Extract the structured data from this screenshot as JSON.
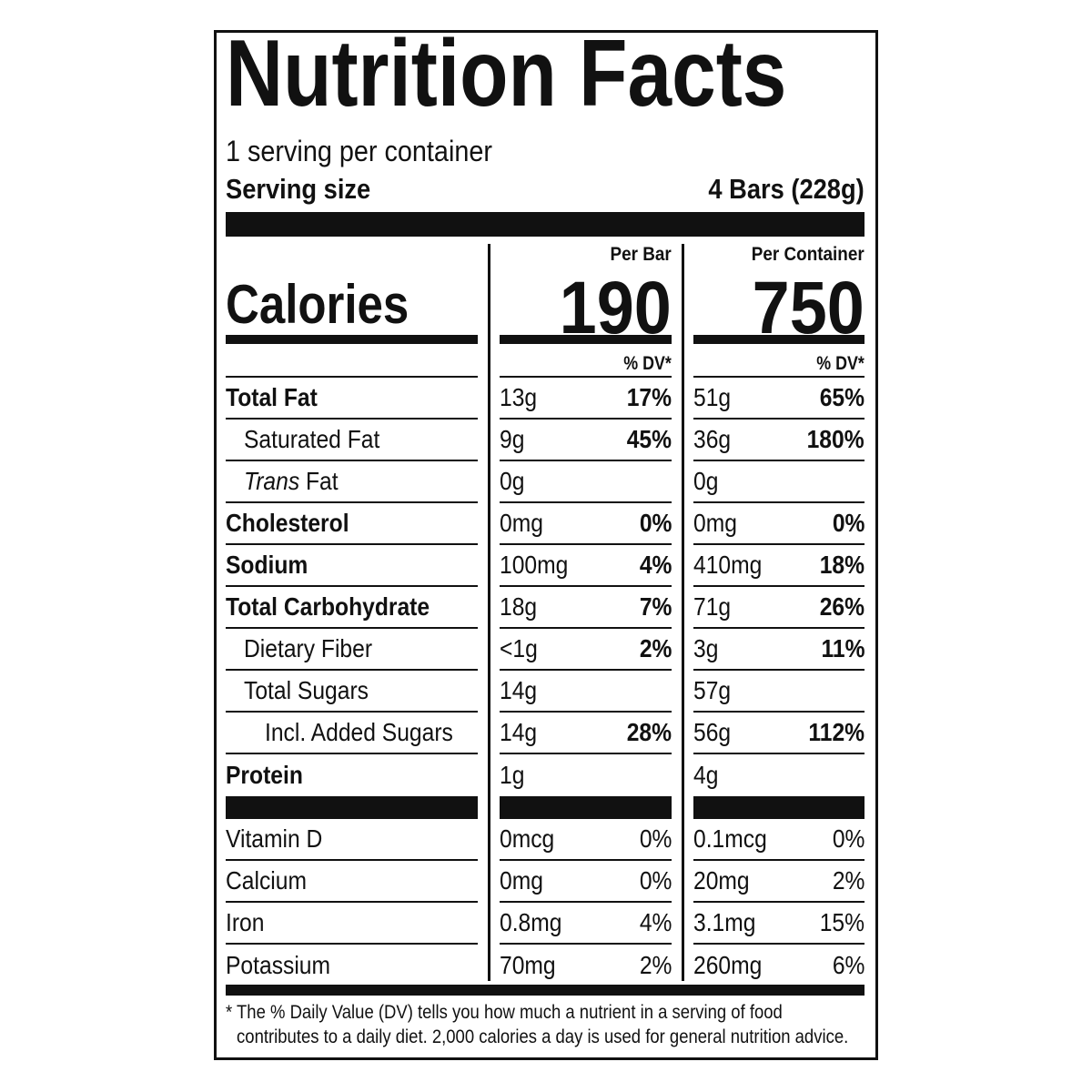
{
  "title": "Nutrition Facts",
  "servings_per_container": "1 serving per container",
  "serving_size": {
    "label": "Serving size",
    "value": "4 Bars (228g)"
  },
  "calories": {
    "label": "Calories",
    "columns": [
      {
        "header": "Per Bar",
        "value": "190"
      },
      {
        "header": "Per Container",
        "value": "750"
      }
    ]
  },
  "dv_header": "% DV*",
  "nutrients": [
    {
      "label": "Total Fat",
      "bold": true,
      "indent": 0,
      "per_bar": {
        "amount": "13g",
        "dv": "17%"
      },
      "per_container": {
        "amount": "51g",
        "dv": "65%"
      }
    },
    {
      "label": "Saturated Fat",
      "bold": false,
      "indent": 1,
      "per_bar": {
        "amount": "9g",
        "dv": "45%"
      },
      "per_container": {
        "amount": "36g",
        "dv": "180%"
      }
    },
    {
      "label_italic": "Trans",
      "label": " Fat",
      "bold": false,
      "indent": 1,
      "per_bar": {
        "amount": "0g",
        "dv": ""
      },
      "per_container": {
        "amount": "0g",
        "dv": ""
      }
    },
    {
      "label": "Cholesterol",
      "bold": true,
      "indent": 0,
      "per_bar": {
        "amount": "0mg",
        "dv": "0%"
      },
      "per_container": {
        "amount": "0mg",
        "dv": "0%"
      }
    },
    {
      "label": "Sodium",
      "bold": true,
      "indent": 0,
      "per_bar": {
        "amount": "100mg",
        "dv": "4%"
      },
      "per_container": {
        "amount": "410mg",
        "dv": "18%"
      }
    },
    {
      "label": "Total Carbohydrate",
      "bold": true,
      "indent": 0,
      "per_bar": {
        "amount": "18g",
        "dv": "7%"
      },
      "per_container": {
        "amount": "71g",
        "dv": "26%"
      }
    },
    {
      "label": "Dietary Fiber",
      "bold": false,
      "indent": 1,
      "per_bar": {
        "amount": "<1g",
        "dv": "2%"
      },
      "per_container": {
        "amount": "3g",
        "dv": "11%"
      }
    },
    {
      "label": "Total Sugars",
      "bold": false,
      "indent": 1,
      "per_bar": {
        "amount": "14g",
        "dv": ""
      },
      "per_container": {
        "amount": "57g",
        "dv": ""
      }
    },
    {
      "label": "Incl. Added Sugars",
      "bold": false,
      "indent": 2,
      "per_bar": {
        "amount": "14g",
        "dv": "28%"
      },
      "per_container": {
        "amount": "56g",
        "dv": "112%"
      }
    },
    {
      "label": "Protein",
      "bold": true,
      "indent": 0,
      "per_bar": {
        "amount": "1g",
        "dv": ""
      },
      "per_container": {
        "amount": "4g",
        "dv": ""
      }
    }
  ],
  "vitamins": [
    {
      "label": "Vitamin D",
      "per_bar": {
        "amount": "0mcg",
        "dv": "0%"
      },
      "per_container": {
        "amount": "0.1mcg",
        "dv": "0%"
      }
    },
    {
      "label": "Calcium",
      "per_bar": {
        "amount": "0mg",
        "dv": "0%"
      },
      "per_container": {
        "amount": "20mg",
        "dv": "2%"
      }
    },
    {
      "label": "Iron",
      "per_bar": {
        "amount": "0.8mg",
        "dv": "4%"
      },
      "per_container": {
        "amount": "3.1mg",
        "dv": "15%"
      }
    },
    {
      "label": "Potassium",
      "per_bar": {
        "amount": "70mg",
        "dv": "2%"
      },
      "per_container": {
        "amount": "260mg",
        "dv": "6%"
      }
    }
  ],
  "footnote": {
    "line1": "* The % Daily Value (DV) tells you how much a nutrient in a serving of food",
    "line2": "contributes to a daily diet. 2,000 calories a day is used for general nutrition advice."
  }
}
